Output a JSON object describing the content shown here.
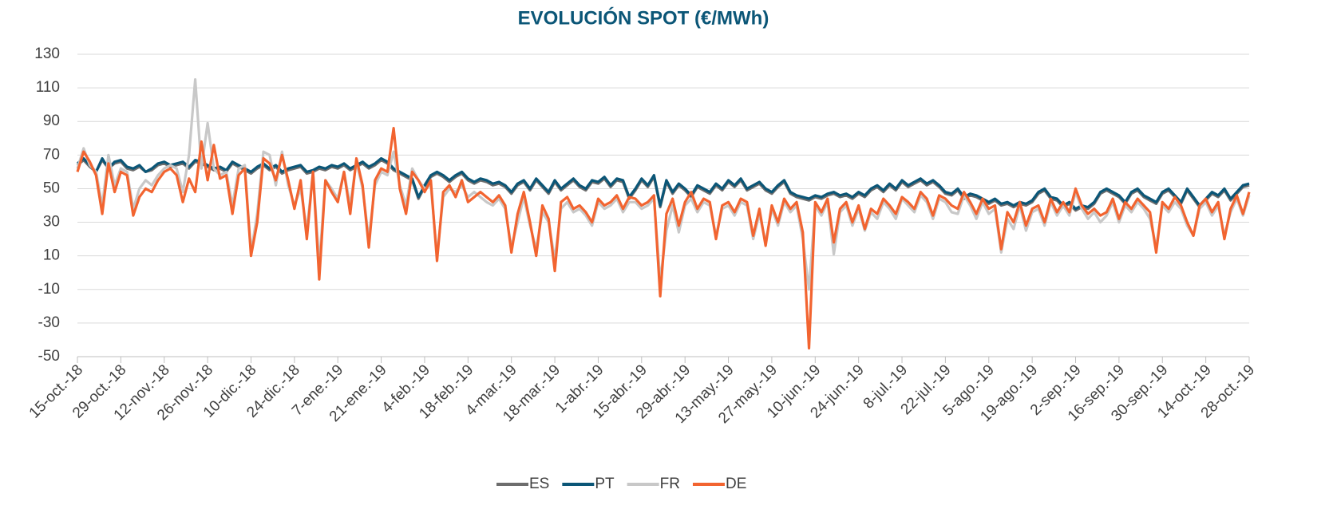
{
  "chart_data": {
    "type": "line",
    "title": "EVOLUCIÓN SPOT  (€/MWh)",
    "categories": [
      "15-oct.-18",
      null,
      null,
      null,
      null,
      null,
      null,
      "29-oct.-18",
      null,
      null,
      null,
      null,
      null,
      null,
      "12-nov.-18",
      null,
      null,
      null,
      null,
      null,
      null,
      "26-nov.-18",
      null,
      null,
      null,
      null,
      null,
      null,
      "10-dic.-18",
      null,
      null,
      null,
      null,
      null,
      null,
      "24-dic.-18",
      null,
      null,
      null,
      null,
      null,
      null,
      "7-ene.-19",
      null,
      null,
      null,
      null,
      null,
      null,
      "21-ene.-19",
      null,
      null,
      null,
      null,
      null,
      null,
      "4-feb.-19",
      null,
      null,
      null,
      null,
      null,
      null,
      "18-feb.-19",
      null,
      null,
      null,
      null,
      null,
      null,
      "4-mar.-19",
      null,
      null,
      null,
      null,
      null,
      null,
      "18-mar.-19",
      null,
      null,
      null,
      null,
      null,
      null,
      "1-abr.-19",
      null,
      null,
      null,
      null,
      null,
      null,
      "15-abr.-19",
      null,
      null,
      null,
      null,
      null,
      null,
      "29-abr.-19",
      null,
      null,
      null,
      null,
      null,
      null,
      "13-may.-19",
      null,
      null,
      null,
      null,
      null,
      null,
      "27-may.-19",
      null,
      null,
      null,
      null,
      null,
      null,
      "10-jun.-19",
      null,
      null,
      null,
      null,
      null,
      null,
      "24-jun.-19",
      null,
      null,
      null,
      null,
      null,
      null,
      "8-jul.-19",
      null,
      null,
      null,
      null,
      null,
      null,
      "22-jul.-19",
      null,
      null,
      null,
      null,
      null,
      null,
      "5-ago.-19",
      null,
      null,
      null,
      null,
      null,
      null,
      "19-ago.-19",
      null,
      null,
      null,
      null,
      null,
      null,
      "2-sep.-19",
      null,
      null,
      null,
      null,
      null,
      null,
      "16-sep.-19",
      null,
      null,
      null,
      null,
      null,
      null,
      "30-sep.-19",
      null,
      null,
      null,
      null,
      null,
      null,
      "14-oct.-19",
      null,
      null,
      null,
      null,
      null,
      null,
      "28-oct.-19"
    ],
    "series": [
      {
        "name": "ES",
        "color": "#6d6d6d",
        "values": [
          64,
          67,
          63,
          60,
          67,
          62,
          65,
          66,
          62,
          61,
          63,
          60,
          61,
          64,
          65,
          63,
          64,
          65,
          62,
          66,
          65,
          63,
          61,
          62,
          60,
          65,
          63,
          61,
          59,
          62,
          64,
          61,
          63,
          59,
          61,
          62,
          63,
          59,
          60,
          62,
          61,
          63,
          62,
          64,
          61,
          63,
          65,
          62,
          64,
          67,
          65,
          61,
          59,
          57,
          55,
          44,
          51,
          57,
          59,
          57,
          54,
          57,
          59,
          55,
          53,
          55,
          54,
          52,
          53,
          51,
          47,
          52,
          54,
          49,
          55,
          51,
          47,
          54,
          49,
          52,
          55,
          51,
          49,
          54,
          53,
          56,
          51,
          55,
          54,
          44,
          49,
          55,
          51,
          57,
          39,
          54,
          47,
          52,
          49,
          45,
          51,
          49,
          47,
          52,
          49,
          54,
          51,
          55,
          49,
          51,
          53,
          49,
          47,
          51,
          54,
          47,
          45,
          44,
          43,
          45,
          44,
          46,
          47,
          45,
          46,
          44,
          47,
          45,
          49,
          51,
          48,
          52,
          49,
          54,
          51,
          53,
          55,
          52,
          54,
          51,
          47,
          46,
          49,
          44,
          46,
          45,
          43,
          41,
          43,
          40,
          41,
          39,
          41,
          40,
          42,
          47,
          49,
          44,
          43,
          39,
          41,
          37,
          39,
          38,
          41,
          47,
          49,
          47,
          45,
          41,
          47,
          49,
          45,
          43,
          41,
          47,
          49,
          45,
          41,
          49,
          44,
          39,
          43,
          47,
          45,
          49,
          43,
          47,
          51,
          52
        ]
      },
      {
        "name": "PT",
        "color": "#0b5677",
        "values": [
          65,
          68,
          64,
          60,
          68,
          62,
          66,
          67,
          63,
          62,
          64,
          60,
          62,
          65,
          66,
          64,
          65,
          66,
          63,
          67,
          66,
          64,
          62,
          63,
          61,
          66,
          64,
          62,
          60,
          63,
          65,
          62,
          64,
          60,
          62,
          63,
          64,
          60,
          61,
          63,
          62,
          64,
          63,
          65,
          62,
          64,
          66,
          63,
          65,
          68,
          66,
          62,
          60,
          58,
          56,
          45,
          52,
          58,
          60,
          58,
          55,
          58,
          60,
          56,
          54,
          56,
          55,
          53,
          54,
          52,
          48,
          53,
          55,
          50,
          56,
          52,
          48,
          55,
          50,
          53,
          56,
          52,
          50,
          55,
          54,
          57,
          52,
          56,
          55,
          45,
          50,
          56,
          52,
          58,
          40,
          55,
          48,
          53,
          50,
          46,
          52,
          50,
          48,
          53,
          50,
          55,
          52,
          56,
          50,
          52,
          54,
          50,
          48,
          52,
          55,
          48,
          46,
          45,
          44,
          46,
          45,
          47,
          48,
          46,
          47,
          45,
          48,
          46,
          50,
          52,
          49,
          53,
          50,
          55,
          52,
          54,
          56,
          53,
          55,
          52,
          48,
          47,
          50,
          45,
          47,
          46,
          44,
          42,
          44,
          41,
          42,
          40,
          42,
          41,
          43,
          48,
          50,
          45,
          44,
          40,
          42,
          38,
          40,
          39,
          42,
          48,
          50,
          48,
          46,
          42,
          48,
          50,
          46,
          44,
          42,
          48,
          50,
          46,
          42,
          50,
          45,
          40,
          44,
          48,
          46,
          50,
          44,
          48,
          52,
          53
        ]
      },
      {
        "name": "FR",
        "color": "#c8c8c8",
        "values": [
          62,
          74,
          64,
          60,
          40,
          70,
          52,
          62,
          60,
          38,
          50,
          55,
          52,
          58,
          62,
          64,
          62,
          48,
          70,
          115,
          62,
          89,
          62,
          58,
          60,
          40,
          62,
          64,
          12,
          35,
          72,
          70,
          52,
          72,
          52,
          40,
          50,
          25,
          60,
          5,
          55,
          50,
          44,
          60,
          40,
          66,
          50,
          20,
          52,
          60,
          58,
          72,
          52,
          40,
          62,
          55,
          50,
          52,
          10,
          45,
          50,
          48,
          52,
          45,
          48,
          45,
          42,
          40,
          44,
          38,
          15,
          30,
          45,
          28,
          14,
          36,
          30,
          8,
          38,
          42,
          36,
          38,
          34,
          28,
          42,
          38,
          40,
          44,
          36,
          42,
          42,
          38,
          40,
          44,
          -5,
          25,
          40,
          24,
          40,
          44,
          36,
          42,
          40,
          22,
          38,
          40,
          34,
          42,
          40,
          20,
          35,
          18,
          38,
          28,
          42,
          36,
          40,
          20,
          -10,
          40,
          34,
          42,
          11,
          36,
          40,
          28,
          38,
          25,
          36,
          32,
          42,
          38,
          32,
          44,
          40,
          36,
          46,
          42,
          32,
          44,
          42,
          36,
          35,
          46,
          40,
          32,
          42,
          35,
          38,
          12,
          32,
          26,
          40,
          25,
          36,
          38,
          28,
          42,
          34,
          40,
          34,
          48,
          38,
          32,
          36,
          30,
          34,
          42,
          30,
          40,
          36,
          42,
          38,
          32,
          15,
          40,
          36,
          42,
          38,
          28,
          22,
          38,
          42,
          34,
          40,
          22,
          36,
          44,
          34,
          46
        ]
      },
      {
        "name": "DE",
        "color": "#f26430",
        "values": [
          60,
          72,
          66,
          58,
          35,
          65,
          48,
          60,
          58,
          34,
          45,
          50,
          48,
          55,
          60,
          62,
          58,
          42,
          56,
          48,
          78,
          55,
          76,
          56,
          58,
          35,
          58,
          62,
          10,
          30,
          68,
          65,
          55,
          70,
          55,
          38,
          55,
          20,
          60,
          -4,
          55,
          48,
          42,
          60,
          35,
          68,
          52,
          15,
          55,
          62,
          60,
          86,
          50,
          35,
          60,
          55,
          48,
          55,
          7,
          48,
          52,
          45,
          55,
          42,
          45,
          48,
          45,
          42,
          46,
          40,
          12,
          35,
          48,
          30,
          10,
          40,
          32,
          1,
          42,
          45,
          38,
          40,
          36,
          30,
          44,
          40,
          42,
          46,
          38,
          45,
          44,
          40,
          42,
          46,
          -14,
          35,
          44,
          28,
          42,
          48,
          38,
          44,
          42,
          20,
          40,
          42,
          36,
          44,
          42,
          22,
          38,
          16,
          40,
          30,
          44,
          38,
          42,
          24,
          -45,
          42,
          36,
          44,
          18,
          38,
          42,
          30,
          40,
          26,
          38,
          35,
          44,
          40,
          35,
          45,
          42,
          38,
          48,
          44,
          34,
          46,
          44,
          40,
          38,
          48,
          42,
          35,
          44,
          38,
          40,
          14,
          36,
          30,
          42,
          28,
          38,
          40,
          30,
          44,
          36,
          42,
          36,
          50,
          40,
          35,
          38,
          34,
          36,
          44,
          32,
          42,
          38,
          44,
          40,
          36,
          12,
          42,
          38,
          45,
          40,
          30,
          22,
          40,
          44,
          36,
          42,
          20,
          38,
          46,
          35,
          48
        ]
      }
    ],
    "ylim": [
      -50,
      130
    ],
    "yticks": [
      -50,
      -30,
      -10,
      10,
      30,
      50,
      70,
      90,
      110,
      130
    ],
    "grid": true,
    "legend": "bottom"
  }
}
